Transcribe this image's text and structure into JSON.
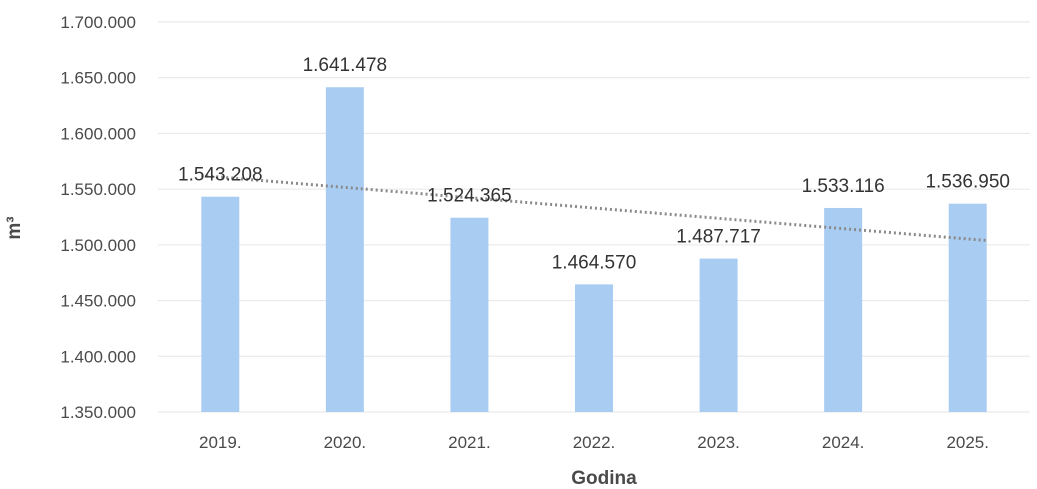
{
  "chart_data": {
    "type": "bar",
    "categories": [
      "2019.",
      "2020.",
      "2021.",
      "2022.",
      "2023.",
      "2024.",
      "2025."
    ],
    "values": [
      1543208,
      1641478,
      1524365,
      1464570,
      1487717,
      1533116,
      1536950
    ],
    "data_labels": [
      "1.543.208",
      "1.641.478",
      "1.524.365",
      "1.464.570",
      "1.487.717",
      "1.533.116",
      "1.536.950"
    ],
    "xlabel": "Godina",
    "ylabel": "m³",
    "ylim": [
      1350000,
      1700000
    ],
    "yticks": [
      1350000,
      1400000,
      1450000,
      1500000,
      1550000,
      1600000,
      1650000,
      1700000
    ],
    "ytick_labels": [
      "1.350.000",
      "1.400.000",
      "1.450.000",
      "1.500.000",
      "1.550.000",
      "1.600.000",
      "1.650.000",
      "1.700.000"
    ],
    "trendline": {
      "type": "linear",
      "style": "dotted",
      "color": "#8a8a8a"
    },
    "bar_color": "#a9cdf2",
    "grid": true,
    "legend": "none"
  }
}
